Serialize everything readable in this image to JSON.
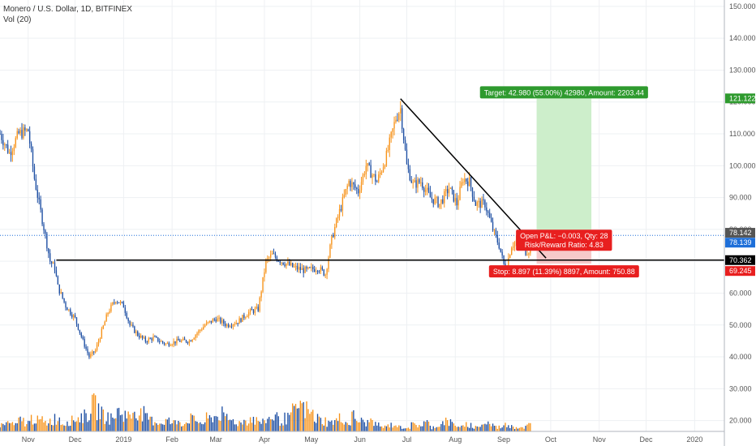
{
  "header": {
    "symbol_line": "Monero / U.S. Dollar, 1D, BITFINEX",
    "volume_line": "Vol (20)"
  },
  "colors": {
    "up": "#f7931a",
    "down": "#1e4fa3",
    "vol_up": "#f7931a",
    "vol_down": "#1e4fa3",
    "target_zone": "#cdeecb",
    "stop_zone": "#f6c9c9",
    "target_badge": "#2e9a2e",
    "stop_badge": "#e81f1f",
    "price_line": "#1e6fd9"
  },
  "chart_data": {
    "type": "candlestick",
    "y_axis": {
      "ticks": [
        "150.000",
        "140.000",
        "130.000",
        "120.000",
        "110.000",
        "100.000",
        "90.000",
        "80.000",
        "70.000",
        "60.000",
        "50.000",
        "40.000",
        "30.000",
        "20.000"
      ],
      "tick_values": [
        150,
        140,
        130,
        120,
        110,
        100,
        90,
        80,
        70,
        60,
        50,
        40,
        30,
        20
      ],
      "range": [
        16.6,
        152
      ]
    },
    "x_axis": {
      "ticks": [
        "Nov",
        "Dec",
        "2019",
        "Feb",
        "Mar",
        "Apr",
        "May",
        "Jun",
        "Jul",
        "Aug",
        "Sep",
        "Oct",
        "Nov",
        "Dec",
        "2020"
      ],
      "tick_dates": [
        "2018-11-01",
        "2018-12-01",
        "2019-01-01",
        "2019-02-01",
        "2019-03-01",
        "2019-04-01",
        "2019-05-01",
        "2019-06-01",
        "2019-07-01",
        "2019-08-01",
        "2019-09-01",
        "2019-10-01",
        "2019-11-01",
        "2019-12-01",
        "2020-01-01"
      ],
      "range": [
        "2018-10-14",
        "2020-01-20"
      ]
    },
    "price_path": {
      "dates": [
        "2018-10-14",
        "2018-10-20",
        "2018-10-26",
        "2018-11-01",
        "2018-11-05",
        "2018-11-08",
        "2018-11-12",
        "2018-11-15",
        "2018-11-18",
        "2018-11-20",
        "2018-11-25",
        "2018-12-01",
        "2018-12-06",
        "2018-12-10",
        "2018-12-14",
        "2018-12-18",
        "2018-12-22",
        "2018-12-27",
        "2019-01-01",
        "2019-01-05",
        "2019-01-10",
        "2019-01-15",
        "2019-01-20",
        "2019-01-28",
        "2019-02-05",
        "2019-02-12",
        "2019-02-18",
        "2019-02-22",
        "2019-03-01",
        "2019-03-08",
        "2019-03-15",
        "2019-03-22",
        "2019-03-28",
        "2019-04-02",
        "2019-04-06",
        "2019-04-12",
        "2019-04-20",
        "2019-04-28",
        "2019-05-05",
        "2019-05-10",
        "2019-05-14",
        "2019-05-18",
        "2019-05-25",
        "2019-05-31",
        "2019-06-05",
        "2019-06-12",
        "2019-06-18",
        "2019-06-24",
        "2019-06-27",
        "2019-07-01",
        "2019-07-05",
        "2019-07-10",
        "2019-07-16",
        "2019-07-22",
        "2019-07-28",
        "2019-08-02",
        "2019-08-06",
        "2019-08-10",
        "2019-08-14",
        "2019-08-20",
        "2019-08-25",
        "2019-08-29",
        "2019-09-02",
        "2019-09-06",
        "2019-09-10",
        "2019-09-15",
        "2019-09-19"
      ],
      "closes": [
        110,
        104,
        110,
        111,
        96,
        88,
        78,
        70,
        68,
        62,
        56,
        52,
        45,
        40,
        42,
        48,
        54,
        58,
        56,
        50,
        47,
        45,
        46,
        44,
        45,
        45,
        48,
        50,
        52,
        50,
        51,
        54,
        55,
        70,
        72,
        70,
        68,
        67,
        68,
        66,
        77,
        84,
        95,
        92,
        100,
        95,
        103,
        115,
        118,
        100,
        94,
        95,
        90,
        88,
        93,
        88,
        96,
        95,
        88,
        88,
        80,
        75,
        67,
        75,
        77,
        73,
        74
      ]
    },
    "volume": {
      "axis_note": "Vol (20)",
      "values": [
        3,
        4,
        3,
        5,
        4,
        6,
        5,
        4,
        5,
        6,
        4,
        5,
        6,
        7,
        8,
        12,
        10,
        7,
        6,
        9,
        8,
        7,
        10,
        8,
        6,
        5,
        4,
        5,
        4,
        5,
        4,
        6,
        5,
        4,
        6,
        7,
        8,
        6,
        5,
        4,
        5,
        6,
        5,
        4,
        6,
        7,
        5,
        6,
        9,
        12,
        10,
        8,
        6,
        5,
        4,
        5,
        6,
        4,
        7,
        5,
        4,
        5,
        3,
        2,
        3,
        3,
        2,
        2,
        3,
        3,
        4,
        2,
        3,
        5,
        4,
        3,
        2,
        3,
        2,
        3,
        4,
        3,
        2,
        3,
        3,
        2,
        2,
        3
      ],
      "max": 35
    },
    "drawings": {
      "horizontal_line_price": 70.362,
      "trendline": {
        "from": [
          "2019-06-27",
          121.0
        ],
        "to": [
          "2019-09-28",
          71.0
        ]
      },
      "support_line": {
        "from": [
          "2018-11-19",
          70.362
        ],
        "to": [
          "2020-01-20",
          70.362
        ]
      }
    },
    "position": {
      "entry": 78.142,
      "target": 121.122,
      "stop": 69.245,
      "start_date": "2019-09-22",
      "end_date": "2019-10-27"
    }
  },
  "price_labels": {
    "target_axis": "121.122",
    "last_price": "78.142",
    "current_price": "78.139",
    "line_price": "70.362",
    "stop_axis": "69.245"
  },
  "position_tool": {
    "target_text": "Target: 42.980 (55.00%) 42980, Amount: 2203.44",
    "pnl_text": "Open P&L: −0.003, Qty: 28",
    "rr_text": "Risk/Reward Ratio: 4.83",
    "stop_text": "Stop: 8.897 (11.39%) 8897, Amount: 750.88"
  }
}
